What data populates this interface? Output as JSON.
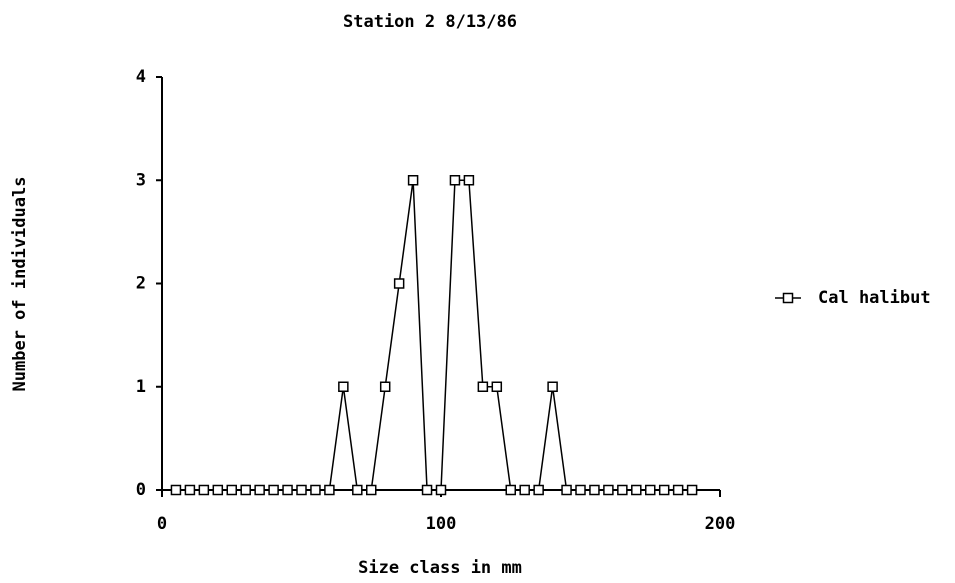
{
  "chart_data": {
    "type": "line",
    "title": "Station 2  8/13/86",
    "xlabel": "Size class  in mm",
    "ylabel": "Number of individuals",
    "x": [
      5,
      10,
      15,
      20,
      25,
      30,
      35,
      40,
      45,
      50,
      55,
      60,
      65,
      70,
      75,
      80,
      85,
      90,
      95,
      100,
      105,
      110,
      115,
      120,
      125,
      130,
      135,
      140,
      145,
      150,
      155,
      160,
      165,
      170,
      175,
      180,
      185,
      190
    ],
    "series": [
      {
        "name": "Cal halibut",
        "color": "#000000",
        "values": [
          0,
          0,
          0,
          0,
          0,
          0,
          0,
          0,
          0,
          0,
          0,
          0,
          1,
          0,
          0,
          1,
          2,
          3,
          0,
          0,
          3,
          3,
          1,
          1,
          0,
          0,
          0,
          1,
          0,
          0,
          0,
          0,
          0,
          0,
          0,
          0,
          0,
          0
        ]
      }
    ],
    "xlim": [
      0,
      200
    ],
    "xticks": [
      0,
      100,
      200
    ],
    "ylim": [
      0,
      4
    ],
    "yticks": [
      0,
      1,
      2,
      3,
      4
    ],
    "legend": "right"
  }
}
